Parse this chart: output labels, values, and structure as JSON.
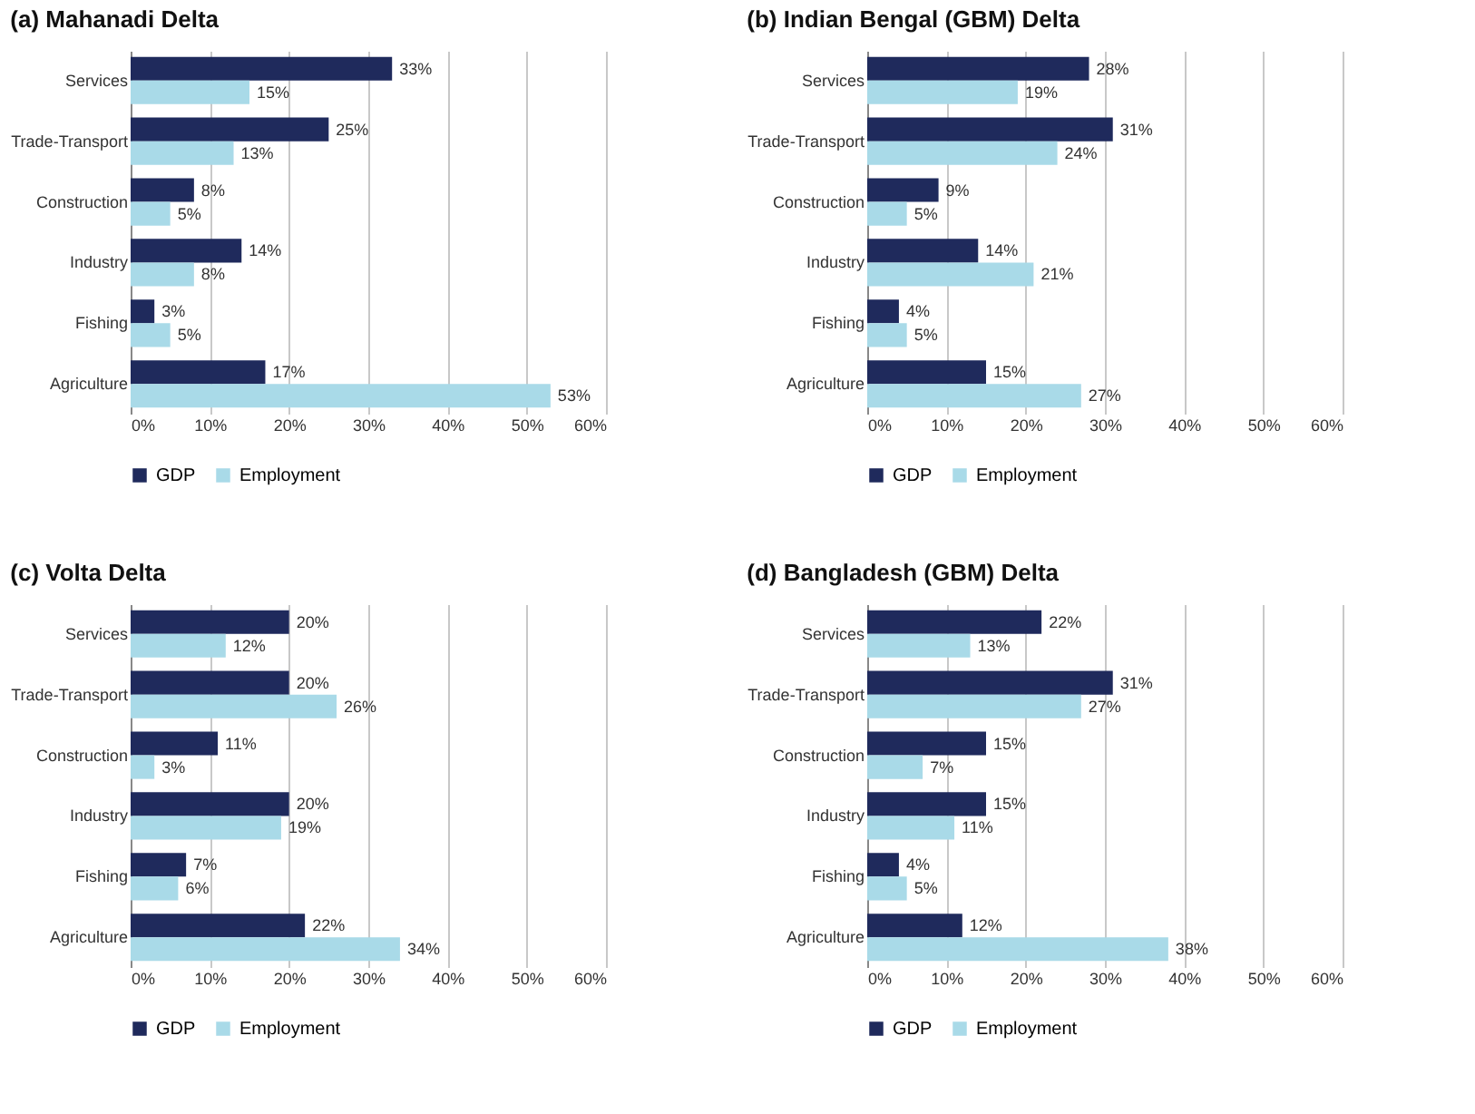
{
  "chart_data": [
    {
      "type": "bar",
      "orientation": "horizontal",
      "title": "(a) Mahanadi Delta",
      "categories": [
        "Services",
        "Trade-Transport",
        "Construction",
        "Industry",
        "Fishing",
        "Agriculture"
      ],
      "series": [
        {
          "name": "GDP",
          "color": "#1f2a5c",
          "values": [
            33,
            25,
            8,
            14,
            3,
            17
          ],
          "value_labels": [
            "33%",
            "25%",
            "8%",
            "14%",
            "3%",
            "17%"
          ]
        },
        {
          "name": "Employment",
          "color": "#a9dae8",
          "values": [
            15,
            13,
            5,
            8,
            5,
            53
          ],
          "value_labels": [
            "15%",
            "13%",
            "5%",
            "8%",
            "5%",
            "53%"
          ]
        }
      ],
      "xlim": [
        0,
        60
      ],
      "xticks": [
        {
          "value": 0,
          "label": "0%"
        },
        {
          "value": 10,
          "label": "10%"
        },
        {
          "value": 20,
          "label": "20%"
        },
        {
          "value": 30,
          "label": "30%"
        },
        {
          "value": 40,
          "label": "40%"
        },
        {
          "value": 50,
          "label": "50%"
        },
        {
          "value": 60,
          "label": "60%"
        }
      ],
      "grid": "x",
      "legend": "bottom"
    },
    {
      "type": "bar",
      "orientation": "horizontal",
      "title": "(b) Indian Bengal (GBM) Delta",
      "categories": [
        "Services",
        "Trade-Transport",
        "Construction",
        "Industry",
        "Fishing",
        "Agriculture"
      ],
      "series": [
        {
          "name": "GDP",
          "color": "#1f2a5c",
          "values": [
            28,
            31,
            9,
            14,
            4,
            15
          ],
          "value_labels": [
            "28%",
            "31%",
            "9%",
            "14%",
            "4%",
            "15%"
          ]
        },
        {
          "name": "Employment",
          "color": "#a9dae8",
          "values": [
            19,
            24,
            5,
            21,
            5,
            27
          ],
          "value_labels": [
            "19%",
            "24%",
            "5%",
            "21%",
            "5%",
            "27%"
          ]
        }
      ],
      "xlim": [
        0,
        60
      ],
      "xticks": [
        {
          "value": 0,
          "label": "0%"
        },
        {
          "value": 10,
          "label": "10%"
        },
        {
          "value": 20,
          "label": "20%"
        },
        {
          "value": 30,
          "label": "30%"
        },
        {
          "value": 40,
          "label": "40%"
        },
        {
          "value": 50,
          "label": "50%"
        },
        {
          "value": 60,
          "label": "60%"
        }
      ],
      "grid": "x",
      "legend": "bottom"
    },
    {
      "type": "bar",
      "orientation": "horizontal",
      "title": "(c) Volta Delta",
      "categories": [
        "Services",
        "Trade-Transport",
        "Construction",
        "Industry",
        "Fishing",
        "Agriculture"
      ],
      "series": [
        {
          "name": "GDP",
          "color": "#1f2a5c",
          "values": [
            20,
            20,
            11,
            20,
            7,
            22
          ],
          "value_labels": [
            "20%",
            "20%",
            "11%",
            "20%",
            "7%",
            "22%"
          ]
        },
        {
          "name": "Employment",
          "color": "#a9dae8",
          "values": [
            12,
            26,
            3,
            19,
            6,
            34
          ],
          "value_labels": [
            "12%",
            "26%",
            "3%",
            "19%",
            "6%",
            "34%"
          ]
        }
      ],
      "xlim": [
        0,
        60
      ],
      "xticks": [
        {
          "value": 0,
          "label": "0%"
        },
        {
          "value": 10,
          "label": "10%"
        },
        {
          "value": 20,
          "label": "20%"
        },
        {
          "value": 30,
          "label": "30%"
        },
        {
          "value": 40,
          "label": "40%"
        },
        {
          "value": 50,
          "label": "50%"
        },
        {
          "value": 60,
          "label": "60%"
        }
      ],
      "grid": "x",
      "legend": "bottom"
    },
    {
      "type": "bar",
      "orientation": "horizontal",
      "title": "(d) Bangladesh (GBM) Delta",
      "categories": [
        "Services",
        "Trade-Transport",
        "Construction",
        "Industry",
        "Fishing",
        "Agriculture"
      ],
      "series": [
        {
          "name": "GDP",
          "color": "#1f2a5c",
          "values": [
            22,
            31,
            15,
            15,
            4,
            12
          ],
          "value_labels": [
            "22%",
            "31%",
            "15%",
            "15%",
            "4%",
            "12%"
          ]
        },
        {
          "name": "Employment",
          "color": "#a9dae8",
          "values": [
            13,
            27,
            7,
            11,
            5,
            38
          ],
          "value_labels": [
            "13%",
            "27%",
            "7%",
            "11%",
            "5%",
            "38%"
          ]
        }
      ],
      "xlim": [
        0,
        60
      ],
      "xticks": [
        {
          "value": 0,
          "label": "0%"
        },
        {
          "value": 10,
          "label": "10%"
        },
        {
          "value": 20,
          "label": "20%"
        },
        {
          "value": 30,
          "label": "30%"
        },
        {
          "value": 40,
          "label": "40%"
        },
        {
          "value": 50,
          "label": "50%"
        },
        {
          "value": 60,
          "label": "60%"
        }
      ],
      "grid": "x",
      "legend": "bottom"
    }
  ]
}
